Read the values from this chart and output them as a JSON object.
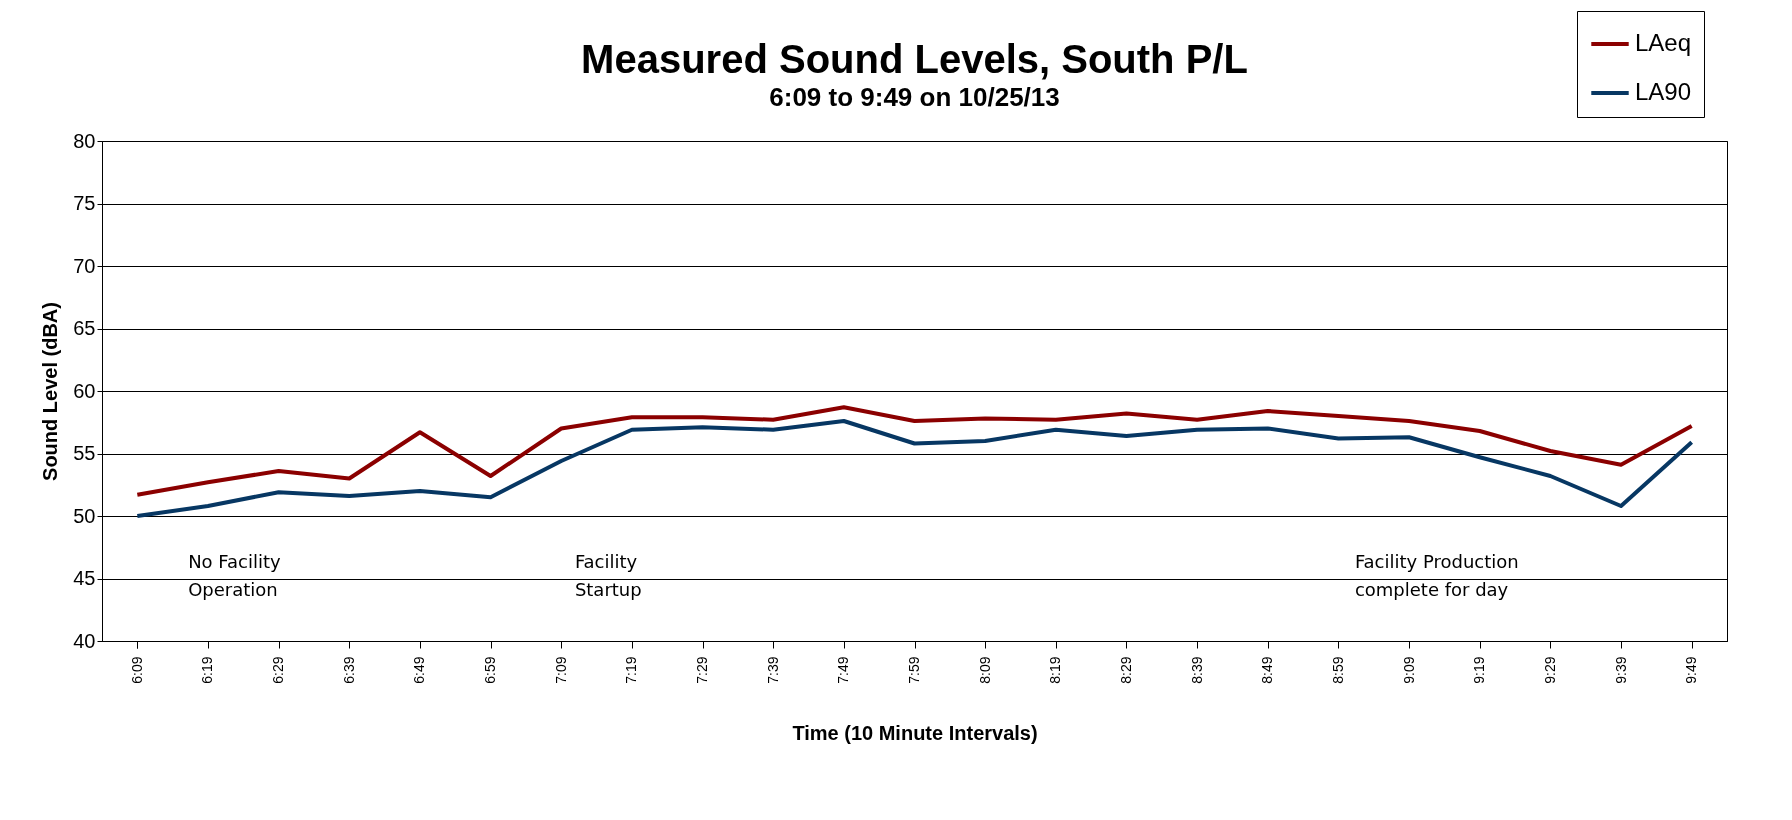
{
  "chart_data": {
    "type": "line",
    "title": "Measured Sound Levels, South P/L",
    "subtitle": "6:09 to 9:49 on 10/25/13",
    "xlabel": "Time (10 Minute Intervals)",
    "ylabel": "Sound Level (dBA)",
    "categories": [
      "6:09",
      "6:19",
      "6:29",
      "6:39",
      "6:49",
      "6:59",
      "7:09",
      "7:19",
      "7:29",
      "7:39",
      "7:49",
      "7:59",
      "8:09",
      "8:19",
      "8:29",
      "8:39",
      "8:49",
      "8:59",
      "9:09",
      "9:19",
      "9:29",
      "9:39",
      "9:49"
    ],
    "series": [
      {
        "name": "LAeq",
        "color": "#8b0000",
        "values": [
          51.7,
          52.7,
          53.6,
          53.0,
          56.7,
          53.2,
          57.0,
          57.9,
          57.9,
          57.7,
          58.7,
          57.6,
          57.8,
          57.7,
          58.2,
          57.7,
          58.4,
          58.0,
          57.6,
          56.8,
          55.2,
          54.1,
          57.2
        ]
      },
      {
        "name": "LA90",
        "color": "#073763",
        "values": [
          50.0,
          50.8,
          51.9,
          51.6,
          52.0,
          51.5,
          54.4,
          56.9,
          57.1,
          56.9,
          57.6,
          55.8,
          56.0,
          56.9,
          56.4,
          56.9,
          57.0,
          56.2,
          56.3,
          54.7,
          53.2,
          50.8,
          55.9
        ]
      }
    ],
    "annotations": [
      "No Facility\nOperation",
      "Facility\nStartup",
      "Facility Production\ncomplete for day"
    ],
    "ylim": [
      40,
      80
    ],
    "yticks": [
      40,
      45,
      50,
      55,
      60,
      65,
      70,
      75,
      80
    ],
    "grid": "y",
    "legend": "top right",
    "line_style": "solid",
    "marker": "none"
  }
}
